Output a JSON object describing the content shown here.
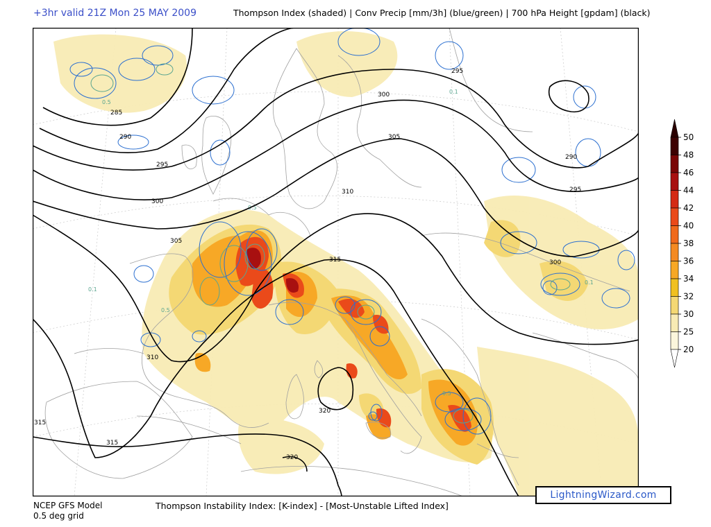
{
  "header": {
    "valid_time": "+3hr valid 21Z Mon 25 MAY 2009",
    "fields": "Thompson Index (shaded) | Conv Precip [mm/3h] (blue/green) | 700 hPa Height [gpdam] (black)"
  },
  "map": {
    "region": "Europe",
    "height_contours": [
      "285",
      "290",
      "295",
      "300",
      "305",
      "310",
      "315",
      "320"
    ],
    "height_labels": [
      {
        "text": "285",
        "lon_hint": "west"
      },
      {
        "text": "290",
        "lon_hint": "west"
      },
      {
        "text": "295",
        "lon_hint": "west"
      },
      {
        "text": "300",
        "lon_hint": "west"
      },
      {
        "text": "305",
        "lon_hint": "west"
      },
      {
        "text": "310",
        "lon_hint": "west"
      },
      {
        "text": "315",
        "lon_hint": "west"
      },
      {
        "text": "315",
        "lon_hint": "central"
      },
      {
        "text": "320",
        "lon_hint": "central"
      },
      {
        "text": "320",
        "lon_hint": "south"
      },
      {
        "text": "295",
        "lon_hint": "north"
      },
      {
        "text": "300",
        "lon_hint": "north"
      },
      {
        "text": "305",
        "lon_hint": "north"
      },
      {
        "text": "310",
        "lon_hint": "central"
      },
      {
        "text": "290",
        "lon_hint": "east"
      },
      {
        "text": "295",
        "lon_hint": "east"
      },
      {
        "text": "300",
        "lon_hint": "east"
      }
    ],
    "precip_labels": [
      "0.5",
      "0.1"
    ],
    "colors": {
      "contour": "#000000",
      "precip_blue": "#2b6fd0",
      "precip_green": "#5aa58f",
      "coast": "#a0a0a0"
    }
  },
  "colorbar": {
    "ticks": [
      "50",
      "48",
      "46",
      "44",
      "42",
      "40",
      "38",
      "36",
      "34",
      "32",
      "30",
      "25",
      "20"
    ],
    "colors": [
      "#3d0202",
      "#7a0606",
      "#a81010",
      "#d42a14",
      "#ea4a1a",
      "#f06a1c",
      "#f48a22",
      "#f7a826",
      "#f0c020",
      "#f4d874",
      "#f8ebb4",
      "#fbf6dc"
    ]
  },
  "footer": {
    "model": "NCEP GFS Model",
    "grid": "0.5 deg grid",
    "index_definition": "Thompson Instability Index: [K-index] - [Most-Unstable Lifted Index]",
    "credit": "LightningWizard.com"
  }
}
